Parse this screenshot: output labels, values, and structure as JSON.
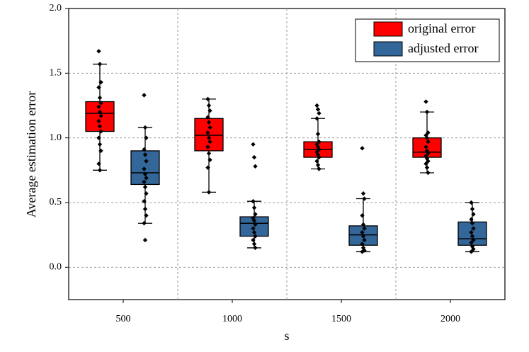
{
  "chart_data": {
    "type": "box",
    "x_label": "s",
    "y_label": "Average estimation error",
    "categories": [
      "500",
      "1000",
      "1500",
      "2000"
    ],
    "ylim": [
      -0.25,
      2.0
    ],
    "yticks": [
      {
        "value": 0,
        "label": "0.0"
      },
      {
        "value": 0.5,
        "label": "0.5"
      },
      {
        "value": 1,
        "label": "1.0"
      },
      {
        "value": 1.5,
        "label": "1.5"
      },
      {
        "value": 2,
        "label": "2.0"
      }
    ],
    "grid": true,
    "legend": "upper right",
    "series": [
      {
        "name": "original error",
        "color": "#ff0000",
        "boxes": [
          {
            "min": 0.75,
            "q1": 1.05,
            "median": 1.19,
            "q3": 1.28,
            "max": 1.57
          },
          {
            "min": 0.58,
            "q1": 0.9,
            "median": 1.02,
            "q3": 1.15,
            "max": 1.3
          },
          {
            "min": 0.76,
            "q1": 0.85,
            "median": 0.91,
            "q3": 0.97,
            "max": 1.15
          },
          {
            "min": 0.73,
            "q1": 0.85,
            "median": 0.89,
            "q3": 1.0,
            "max": 1.2
          }
        ],
        "points": [
          [
            1.67,
            1.57,
            1.43,
            1.39,
            1.31,
            1.27,
            1.24,
            1.2,
            1.17,
            1.13,
            1.09,
            1.05,
            1.0,
            0.95,
            0.9,
            0.8,
            0.75
          ],
          [
            1.3,
            1.25,
            1.21,
            1.16,
            1.12,
            1.08,
            1.04,
            1.0,
            0.97,
            0.93,
            0.88,
            0.83,
            0.77,
            0.58
          ],
          [
            1.25,
            1.22,
            1.19,
            1.15,
            1.03,
            0.97,
            0.95,
            0.93,
            0.91,
            0.89,
            0.87,
            0.85,
            0.82,
            0.79,
            0.76
          ],
          [
            1.28,
            1.2,
            1.04,
            1.02,
            1.0,
            0.97,
            0.93,
            0.9,
            0.88,
            0.86,
            0.84,
            0.82,
            0.8,
            0.77,
            0.73
          ]
        ]
      },
      {
        "name": "adjusted error",
        "color": "#336699",
        "boxes": [
          {
            "min": 0.34,
            "q1": 0.64,
            "median": 0.73,
            "q3": 0.9,
            "max": 1.08
          },
          {
            "min": 0.15,
            "q1": 0.24,
            "median": 0.34,
            "q3": 0.39,
            "max": 0.51
          },
          {
            "min": 0.12,
            "q1": 0.17,
            "median": 0.25,
            "q3": 0.32,
            "max": 0.53
          },
          {
            "min": 0.12,
            "q1": 0.17,
            "median": 0.22,
            "q3": 0.35,
            "max": 0.5
          }
        ],
        "points": [
          [
            1.33,
            1.08,
            1.0,
            0.91,
            0.87,
            0.82,
            0.76,
            0.72,
            0.69,
            0.66,
            0.62,
            0.57,
            0.51,
            0.45,
            0.4,
            0.34,
            0.21
          ],
          [
            0.95,
            0.85,
            0.78,
            0.51,
            0.46,
            0.41,
            0.38,
            0.36,
            0.33,
            0.3,
            0.27,
            0.24,
            0.21,
            0.18,
            0.15
          ],
          [
            0.92,
            0.57,
            0.53,
            0.4,
            0.33,
            0.3,
            0.27,
            0.24,
            0.21,
            0.18,
            0.15,
            0.13,
            0.12
          ],
          [
            0.5,
            0.45,
            0.41,
            0.37,
            0.34,
            0.3,
            0.27,
            0.24,
            0.21,
            0.19,
            0.16,
            0.14,
            0.12
          ]
        ]
      }
    ]
  }
}
